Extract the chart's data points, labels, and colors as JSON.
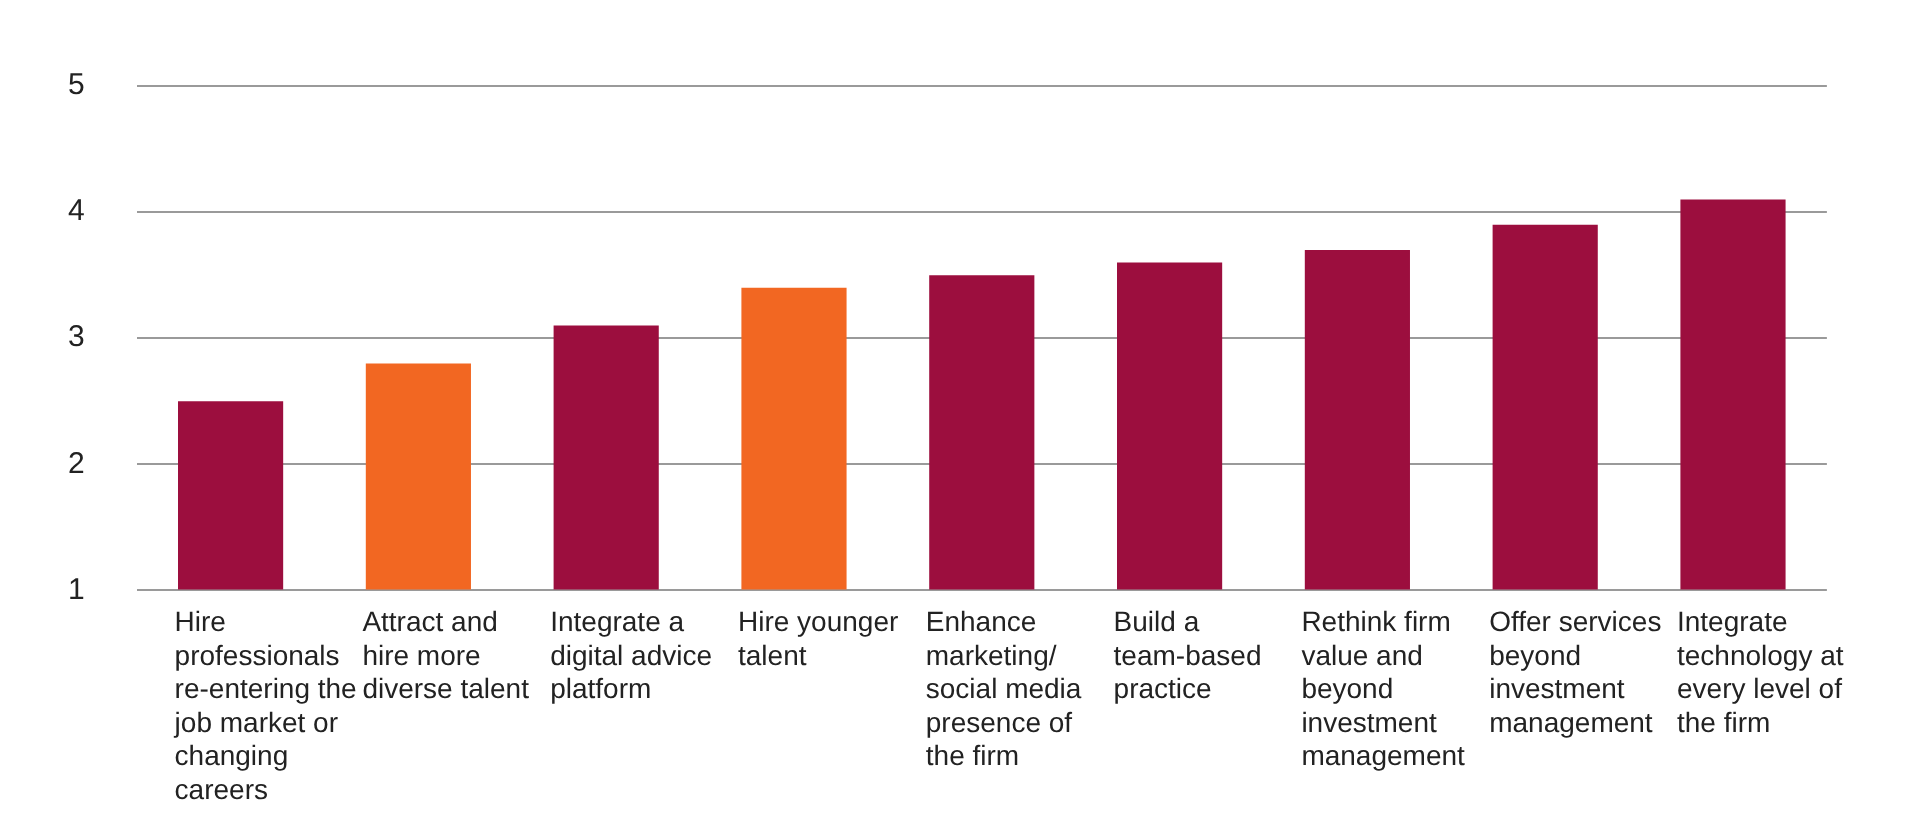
{
  "chart_data": {
    "type": "bar",
    "categories": [
      "Hire professionals re-entering the job market or changing careers",
      "Attract and hire more diverse talent",
      "Integrate a digital advice platform",
      "Hire younger talent",
      "Enhance marketing/ social media presence of the firm",
      "Build a team-based practice",
      "Rethink firm value and beyond investment management",
      "Offer services beyond investment management",
      "Integrate technology at every level of the firm"
    ],
    "values": [
      2.5,
      2.8,
      3.1,
      3.4,
      3.5,
      3.6,
      3.7,
      3.9,
      4.1
    ],
    "colors": [
      "#9c0e3e",
      "#f26722",
      "#9c0e3e",
      "#f26722",
      "#9c0e3e",
      "#9c0e3e",
      "#9c0e3e",
      "#9c0e3e",
      "#9c0e3e"
    ],
    "ylim": [
      1,
      5
    ],
    "yticks": [
      1,
      2,
      3,
      4,
      5
    ],
    "grid": "y"
  }
}
